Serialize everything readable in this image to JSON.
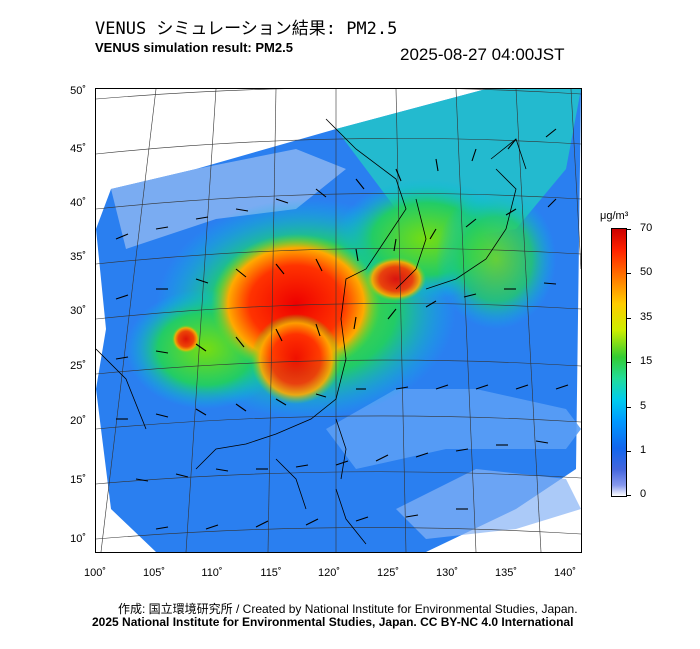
{
  "header": {
    "title_jp": "VENUS シミュレーション結果: PM2.5",
    "title_en": "VENUS simulation result: PM2.5",
    "timestamp": "2025-08-27 04:00JST"
  },
  "map": {
    "lat_labels": [
      "50˚",
      "45˚",
      "40˚",
      "35˚",
      "30˚",
      "25˚",
      "20˚",
      "15˚",
      "10˚"
    ],
    "lon_labels": [
      "100˚",
      "105˚",
      "110˚",
      "115˚",
      "120˚",
      "125˚",
      "130˚",
      "135˚",
      "140˚"
    ]
  },
  "colorbar": {
    "unit": "μg/m³",
    "labels": [
      "70",
      "50",
      "35",
      "15",
      "5",
      "1",
      "0"
    ]
  },
  "footer": {
    "credit_line": "作成: 国立環境研究所 / Created by National Institute for Environmental Studies, Japan.",
    "copyright_line": "2025 National Institute for Environmental Studies, Japan. CC BY-NC 4.0 International"
  }
}
